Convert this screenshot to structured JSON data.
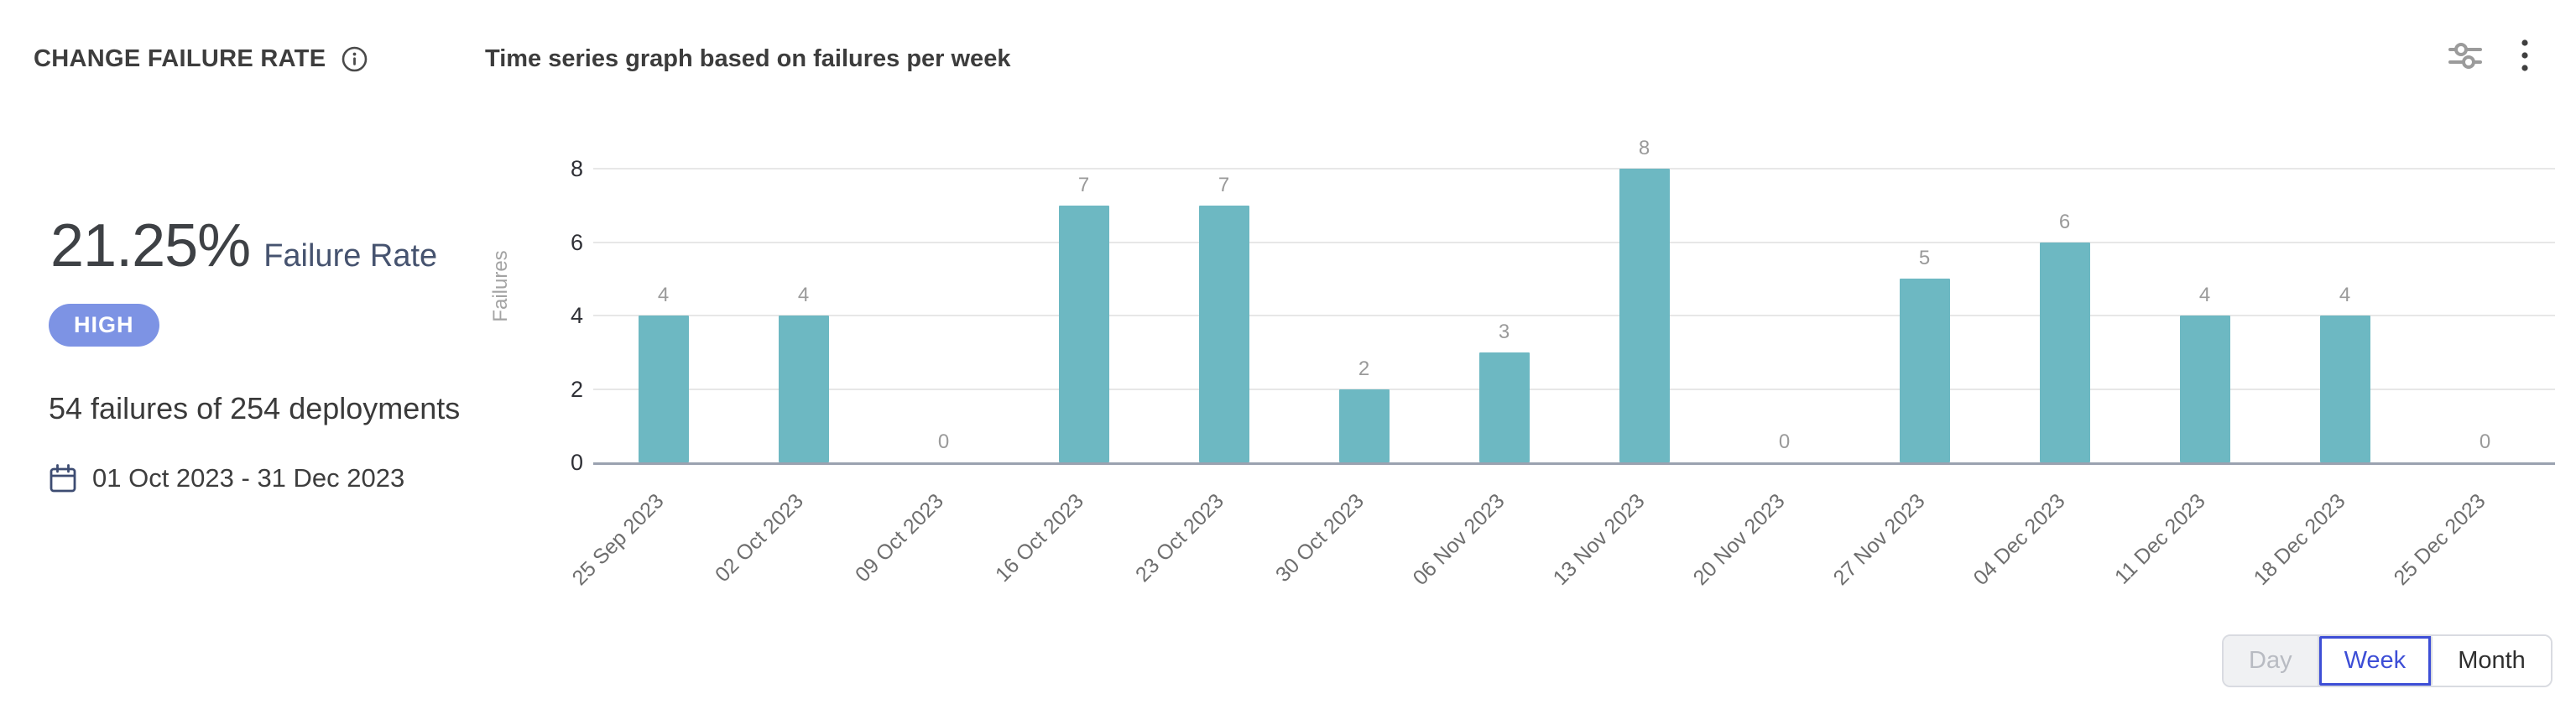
{
  "header": {
    "title": "CHANGE FAILURE RATE",
    "subtitle": "Time series graph based on failures per week"
  },
  "stats": {
    "rate_value": "21.25%",
    "rate_label": "Failure Rate",
    "severity": "HIGH",
    "summary": "54 failures of 254 deployments",
    "date_range": "01 Oct 2023 - 31 Dec 2023"
  },
  "icons": {
    "info": "info-icon",
    "sliders": "sliders-icon",
    "menu": "kebab-menu-icon",
    "calendar": "calendar-icon"
  },
  "colors": {
    "bar": "#6db8c2",
    "badge": "#7d93e4",
    "accent_blue": "#3d4ed6",
    "baseline": "#9aa2b0",
    "gridline": "#e7e7e7"
  },
  "toggle": {
    "options": [
      {
        "label": "Day",
        "state": "disabled"
      },
      {
        "label": "Week",
        "state": "selected"
      },
      {
        "label": "Month",
        "state": "default"
      }
    ],
    "selected": "Week"
  },
  "chart_data": {
    "type": "bar",
    "title": "Time series graph based on failures per week",
    "categories": [
      "25 Sep 2023",
      "02 Oct 2023",
      "09 Oct 2023",
      "16 Oct 2023",
      "23 Oct 2023",
      "30 Oct 2023",
      "06 Nov 2023",
      "13 Nov 2023",
      "20 Nov 2023",
      "27 Nov 2023",
      "04 Dec 2023",
      "11 Dec 2023",
      "18 Dec 2023",
      "25 Dec 2023"
    ],
    "values": [
      4,
      4,
      0,
      7,
      7,
      2,
      3,
      8,
      0,
      5,
      6,
      4,
      4,
      0
    ],
    "xlabel": "",
    "ylabel": "Failures",
    "ylim": [
      0,
      8
    ],
    "yticks": [
      0,
      2,
      4,
      6,
      8
    ],
    "grid": true,
    "value_labels": true,
    "legend": "none",
    "bar_color": "#6db8c2"
  }
}
